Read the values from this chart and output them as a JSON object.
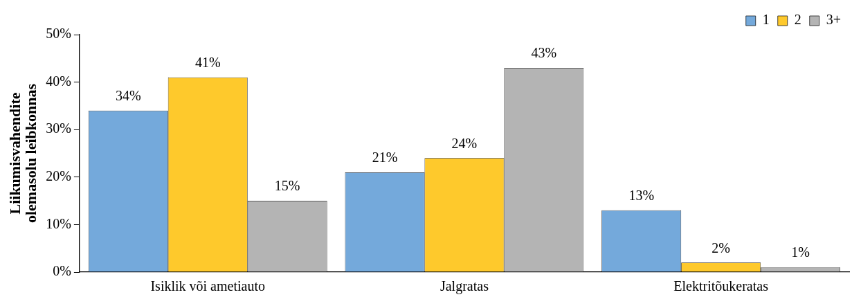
{
  "chart_data": {
    "type": "bar",
    "ylabel": "Liikumisvahendite\nolemasolu leibkonnas",
    "categories": [
      "Isiklik või ametiauto",
      "Jalgratas",
      "Elektritõukeratas"
    ],
    "series": [
      {
        "name": "1",
        "color": "#74a9db",
        "values": [
          34,
          21,
          13
        ],
        "value_labels": [
          "34%",
          "21%",
          "13%"
        ]
      },
      {
        "name": "2",
        "color": "#fec92c",
        "values": [
          41,
          24,
          2
        ],
        "value_labels": [
          "41%",
          "24%",
          "2%"
        ]
      },
      {
        "name": "3+",
        "color": "#b4b4b4",
        "values": [
          15,
          43,
          1
        ],
        "value_labels": [
          "15%",
          "43%",
          "1%"
        ]
      }
    ],
    "ylim": [
      0,
      50
    ],
    "yticks": [
      {
        "value": 0,
        "label": "0%"
      },
      {
        "value": 10,
        "label": "10%"
      },
      {
        "value": 20,
        "label": "20%"
      },
      {
        "value": 30,
        "label": "30%"
      },
      {
        "value": 40,
        "label": "40%"
      },
      {
        "value": 50,
        "label": "50%"
      }
    ],
    "grid": false,
    "legend": "top right"
  }
}
